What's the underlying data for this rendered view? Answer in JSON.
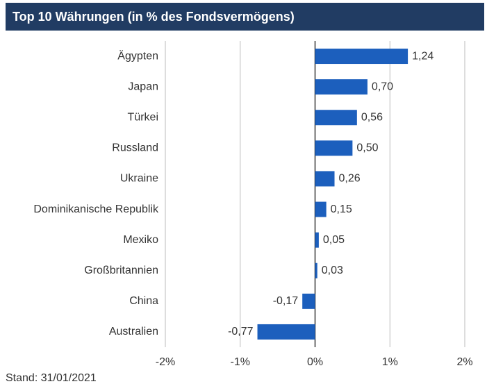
{
  "chart_data": {
    "type": "bar",
    "orientation": "horizontal",
    "title": "Top 10 Währungen (in % des Fondsvermögens)",
    "categories": [
      "Ägypten",
      "Japan",
      "Türkei",
      "Russland",
      "Ukraine",
      "Dominikanische Republik",
      "Mexiko",
      "Großbritannien",
      "China",
      "Australien"
    ],
    "values": [
      1.24,
      0.7,
      0.56,
      0.5,
      0.26,
      0.15,
      0.05,
      0.03,
      -0.17,
      -0.77
    ],
    "value_labels": [
      "1,24",
      "0,70",
      "0,56",
      "0,50",
      "0,26",
      "0,15",
      "0,05",
      "0,03",
      "-0,17",
      "-0,77"
    ],
    "color": "#1c5fbd",
    "xlim": [
      -2,
      2
    ],
    "xticks": [
      {
        "value": -2,
        "label": "-2%"
      },
      {
        "value": -1,
        "label": "-1%"
      },
      {
        "value": 0,
        "label": "0%"
      },
      {
        "value": 1,
        "label": "1%"
      },
      {
        "value": 2,
        "label": "2%"
      }
    ],
    "grid": true,
    "footnote": "Stand: 31/01/2021"
  }
}
